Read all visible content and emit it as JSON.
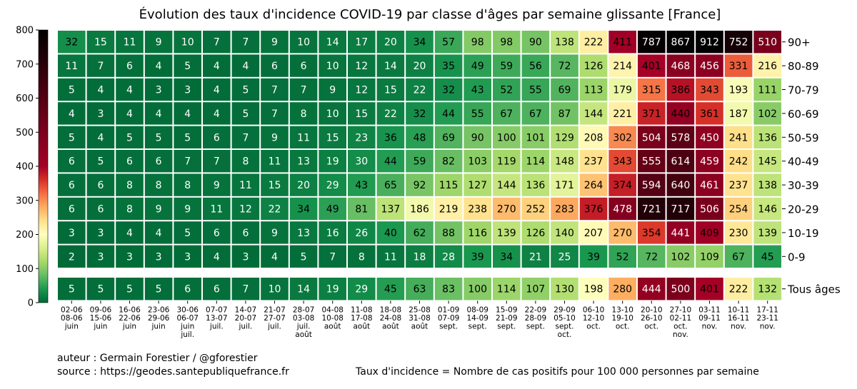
{
  "chart_data": {
    "type": "heatmap",
    "title": "Évolution des taux d'incidence COVID-19 par classe d'âges par semaine glissante [France]",
    "weeks": [
      [
        "02-06",
        "08-06",
        "juin"
      ],
      [
        "09-06",
        "15-06",
        "juin"
      ],
      [
        "16-06",
        "22-06",
        "juin"
      ],
      [
        "23-06",
        "29-06",
        "juin"
      ],
      [
        "30-06",
        "06-07",
        "juin",
        "juil."
      ],
      [
        "07-07",
        "13-07",
        "juil."
      ],
      [
        "14-07",
        "20-07",
        "juil."
      ],
      [
        "21-07",
        "27-07",
        "juil."
      ],
      [
        "28-07",
        "03-08",
        "juil.",
        "août"
      ],
      [
        "04-08",
        "10-08",
        "août"
      ],
      [
        "11-08",
        "17-08",
        "août"
      ],
      [
        "18-08",
        "24-08",
        "août"
      ],
      [
        "25-08",
        "31-08",
        "août"
      ],
      [
        "01-09",
        "07-09",
        "sept."
      ],
      [
        "08-09",
        "14-09",
        "sept."
      ],
      [
        "15-09",
        "21-09",
        "sept."
      ],
      [
        "22-09",
        "28-09",
        "sept."
      ],
      [
        "29-09",
        "05-10",
        "sept.",
        "oct."
      ],
      [
        "06-10",
        "12-10",
        "oct."
      ],
      [
        "13-10",
        "19-10",
        "oct."
      ],
      [
        "20-10",
        "26-10",
        "oct."
      ],
      [
        "27-10",
        "02-11",
        "oct.",
        "nov."
      ],
      [
        "03-11",
        "09-11",
        "nov."
      ],
      [
        "10-11",
        "16-11",
        "nov."
      ],
      [
        "17-11",
        "23-11",
        "nov."
      ]
    ],
    "rows": [
      {
        "label": "90+",
        "values": [
          32,
          15,
          11,
          9,
          10,
          7,
          7,
          9,
          10,
          14,
          17,
          20,
          34,
          57,
          98,
          98,
          90,
          138,
          222,
          411,
          787,
          867,
          912,
          752,
          510
        ]
      },
      {
        "label": "80-89",
        "values": [
          11,
          7,
          6,
          4,
          5,
          4,
          4,
          6,
          6,
          10,
          12,
          14,
          20,
          35,
          49,
          59,
          56,
          72,
          126,
          214,
          401,
          468,
          456,
          331,
          216
        ]
      },
      {
        "label": "70-79",
        "values": [
          5,
          4,
          4,
          3,
          3,
          4,
          5,
          7,
          7,
          9,
          12,
          15,
          22,
          32,
          43,
          52,
          55,
          69,
          113,
          179,
          315,
          386,
          343,
          193,
          111
        ]
      },
      {
        "label": "60-69",
        "values": [
          4,
          3,
          4,
          4,
          4,
          4,
          5,
          7,
          8,
          10,
          15,
          22,
          32,
          44,
          55,
          67,
          67,
          87,
          144,
          221,
          371,
          440,
          361,
          187,
          102
        ]
      },
      {
        "label": "50-59",
        "values": [
          5,
          4,
          5,
          5,
          5,
          6,
          7,
          9,
          11,
          15,
          23,
          36,
          48,
          69,
          90,
          100,
          101,
          129,
          208,
          302,
          504,
          578,
          450,
          241,
          136
        ]
      },
      {
        "label": "40-49",
        "values": [
          6,
          5,
          6,
          6,
          7,
          7,
          8,
          11,
          13,
          19,
          30,
          44,
          59,
          82,
          103,
          119,
          114,
          148,
          237,
          343,
          555,
          614,
          459,
          242,
          145
        ]
      },
      {
        "label": "30-39",
        "values": [
          6,
          6,
          8,
          8,
          8,
          9,
          11,
          15,
          20,
          29,
          43,
          65,
          92,
          115,
          127,
          144,
          136,
          171,
          264,
          374,
          594,
          640,
          461,
          237,
          138
        ]
      },
      {
        "label": "20-29",
        "values": [
          6,
          6,
          8,
          9,
          9,
          11,
          12,
          22,
          34,
          49,
          81,
          137,
          186,
          219,
          238,
          270,
          252,
          283,
          376,
          478,
          721,
          717,
          506,
          254,
          146
        ]
      },
      {
        "label": "10-19",
        "values": [
          3,
          3,
          4,
          4,
          5,
          6,
          6,
          9,
          13,
          16,
          26,
          40,
          62,
          88,
          116,
          139,
          126,
          140,
          207,
          270,
          354,
          441,
          409,
          230,
          139
        ]
      },
      {
        "label": "0-9",
        "values": [
          2,
          3,
          3,
          3,
          3,
          4,
          3,
          4,
          5,
          7,
          8,
          11,
          18,
          28,
          39,
          34,
          21,
          25,
          39,
          52,
          72,
          102,
          109,
          67,
          45
        ]
      }
    ],
    "total_row": {
      "label": "Tous âges",
      "values": [
        5,
        5,
        5,
        5,
        6,
        6,
        7,
        10,
        14,
        19,
        29,
        45,
        63,
        83,
        100,
        114,
        107,
        130,
        198,
        280,
        444,
        500,
        401,
        222,
        132
      ]
    },
    "colorbar": {
      "ticks": [
        "0",
        "100",
        "200",
        "300",
        "400",
        "500",
        "600",
        "700",
        "800"
      ],
      "range": [
        0,
        800
      ],
      "colormap": "RdYlGn_r"
    }
  },
  "footer": {
    "author": "auteur : Germain Forestier / @gforestier",
    "source": "source : https://geodes.santepubliquefrance.fr",
    "definition": "Taux d'incidence = Nombre de cas positifs pour 100 000 personnes par semaine"
  }
}
